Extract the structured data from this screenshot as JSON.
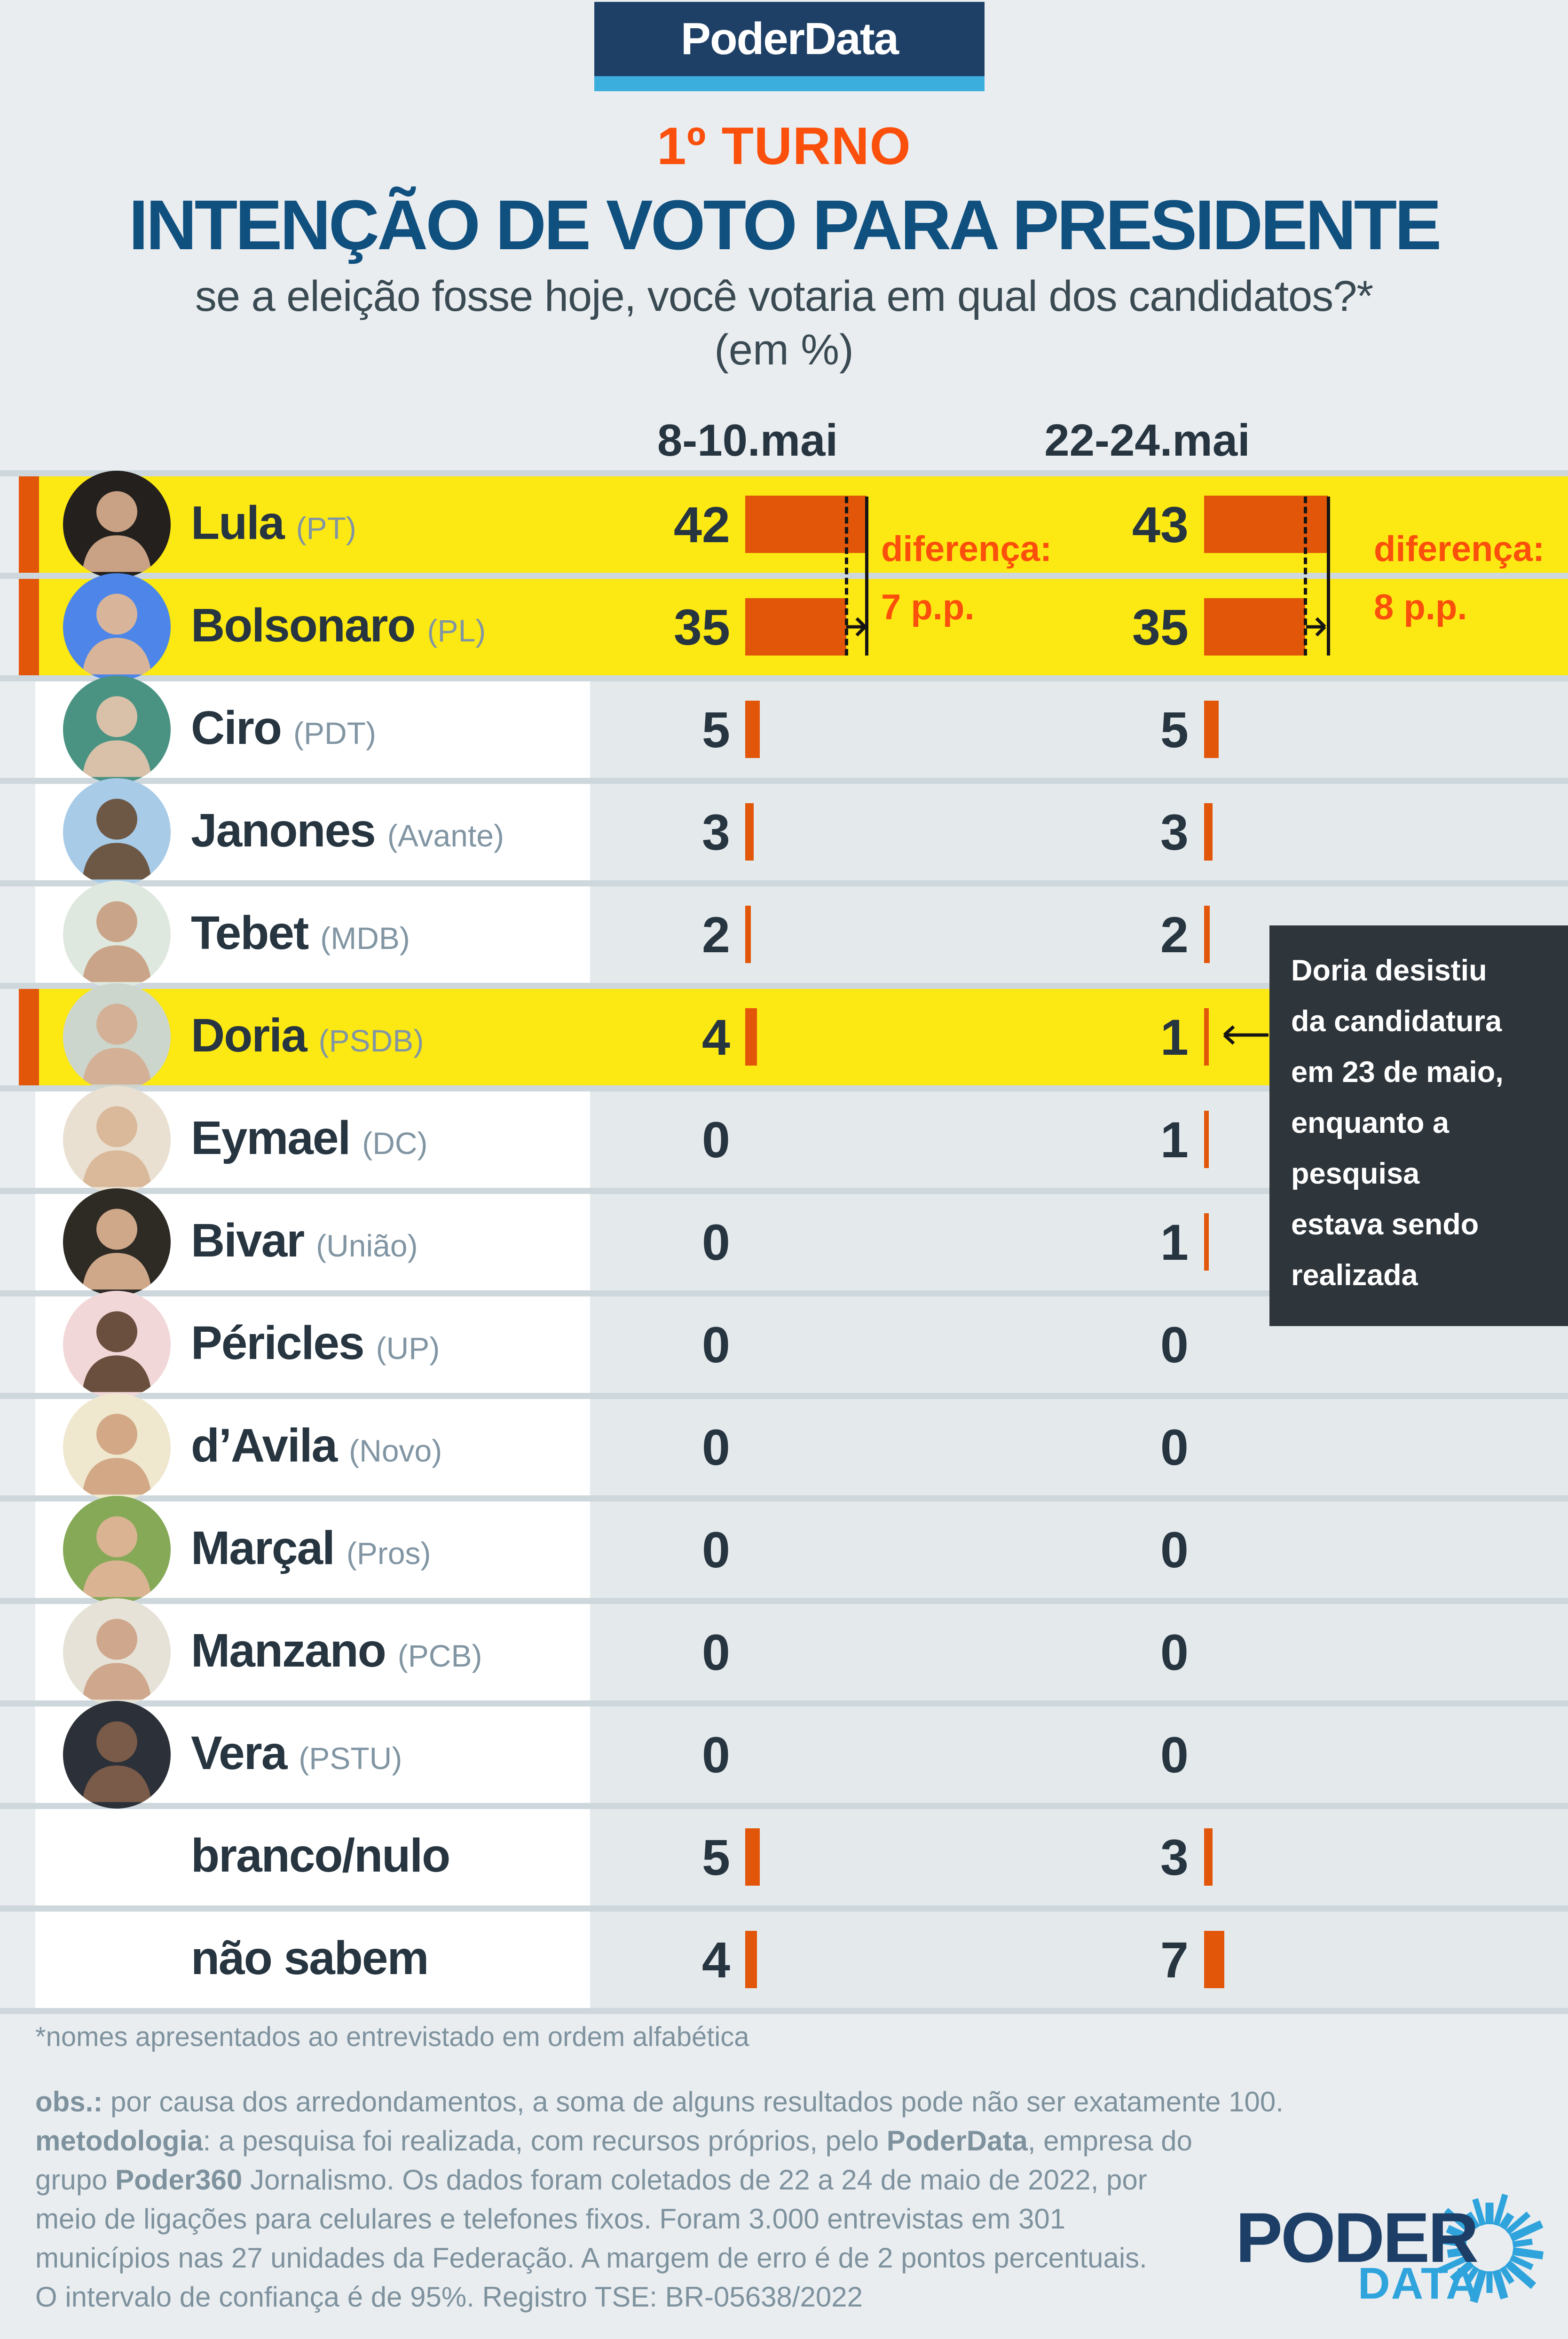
{
  "brand": {
    "badge_label": "PoderData",
    "logo_top": "PODER",
    "logo_bottom": "DATA"
  },
  "header": {
    "round_label": "1º TURNO",
    "title": "INTENÇÃO DE VOTO PARA PRESIDENTE",
    "subtitle": "se a eleição fosse hoje, você votaria em qual dos candidatos?*",
    "unit_label": "(em %)"
  },
  "columns": {
    "col1": "8-10.mai",
    "col2": "22-24.mai"
  },
  "diff": {
    "label": "diferença:",
    "col1_value": "7 p.p.",
    "col2_value": "8 p.p."
  },
  "doria_note": {
    "lines": [
      "Doria desistiu",
      "da candidatura",
      "em 23 de maio,",
      "enquanto a",
      "pesquisa",
      "estava sendo",
      "realizada"
    ]
  },
  "table": {
    "rows": [
      {
        "name": "Lula",
        "party": "(PT)",
        "v1": 42,
        "v2": 43,
        "highlight": true,
        "avatar": {
          "bg": "#23201d",
          "fg": "#c9a184"
        }
      },
      {
        "name": "Bolsonaro",
        "party": "(PL)",
        "v1": 35,
        "v2": 35,
        "highlight": true,
        "avatar": {
          "bg": "#4d86e8",
          "fg": "#d8b59a"
        }
      },
      {
        "name": "Ciro",
        "party": "(PDT)",
        "v1": 5,
        "v2": 5,
        "highlight": false,
        "avatar": {
          "bg": "#4a9383",
          "fg": "#d9c0a8"
        }
      },
      {
        "name": "Janones",
        "party": "(Avante)",
        "v1": 3,
        "v2": 3,
        "highlight": false,
        "avatar": {
          "bg": "#a8cbe8",
          "fg": "#6d5846"
        }
      },
      {
        "name": "Tebet",
        "party": "(MDB)",
        "v1": 2,
        "v2": 2,
        "highlight": false,
        "avatar": {
          "bg": "#dfe8df",
          "fg": "#caa488"
        }
      },
      {
        "name": "Doria",
        "party": "(PSDB)",
        "v1": 4,
        "v2": 1,
        "highlight": true,
        "avatar": {
          "bg": "#cdd6cc",
          "fg": "#d3b096"
        }
      },
      {
        "name": "Eymael",
        "party": "(DC)",
        "v1": 0,
        "v2": 1,
        "highlight": false,
        "avatar": {
          "bg": "#e9e0d2",
          "fg": "#d9b99a"
        }
      },
      {
        "name": "Bivar",
        "party": "(União)",
        "v1": 0,
        "v2": 1,
        "highlight": false,
        "avatar": {
          "bg": "#2e2a24",
          "fg": "#cfa88a"
        }
      },
      {
        "name": "Péricles",
        "party": "(UP)",
        "v1": 0,
        "v2": 0,
        "highlight": false,
        "avatar": {
          "bg": "#f2d7d8",
          "fg": "#6b4f3e"
        }
      },
      {
        "name": "d’Avila",
        "party": "(Novo)",
        "v1": 0,
        "v2": 0,
        "highlight": false,
        "avatar": {
          "bg": "#efe8cf",
          "fg": "#d2a886"
        }
      },
      {
        "name": "Marçal",
        "party": "(Pros)",
        "v1": 0,
        "v2": 0,
        "highlight": false,
        "avatar": {
          "bg": "#86a957",
          "fg": "#d9b392"
        }
      },
      {
        "name": "Manzano",
        "party": "(PCB)",
        "v1": 0,
        "v2": 0,
        "highlight": false,
        "avatar": {
          "bg": "#e6e2d8",
          "fg": "#cfa78d"
        }
      },
      {
        "name": "Vera",
        "party": "(PSTU)",
        "v1": 0,
        "v2": 0,
        "highlight": false,
        "avatar": {
          "bg": "#2c3038",
          "fg": "#7a5a48"
        }
      },
      {
        "name": "branco/nulo",
        "party": "",
        "v1": 5,
        "v2": 3,
        "highlight": false,
        "avatar": null
      },
      {
        "name": "não sabem",
        "party": "",
        "v1": 4,
        "v2": 7,
        "highlight": false,
        "avatar": null
      }
    ]
  },
  "footnote": "*nomes apresentados ao entrevistado em ordem alfabética",
  "notes": {
    "lines": [
      [
        [
          "obs.:",
          1
        ],
        [
          " por causa dos arredondamentos, a soma de alguns resultados pode não ser exatamente 100.",
          0
        ]
      ],
      [
        [
          "metodologia",
          1
        ],
        [
          ": a pesquisa foi realizada, com recursos próprios, pelo ",
          0
        ],
        [
          "PoderData",
          1
        ],
        [
          ", empresa do",
          0
        ]
      ],
      [
        [
          "grupo ",
          0
        ],
        [
          "Poder360",
          1
        ],
        [
          " Jornalismo. Os dados foram coletados de 22 a 24 de maio de 2022, por",
          0
        ]
      ],
      [
        [
          "meio de ligações para celulares e telefones fixos. Foram 3.000 entrevistas em 301",
          0
        ]
      ],
      [
        [
          "municípios nas 27 unidades da Federação. A margem de erro é de 2 pontos percentuais.",
          0
        ]
      ],
      [
        [
          "O intervalo de confiança é de 95%. Registro TSE: BR-05638/2022",
          0
        ]
      ]
    ]
  },
  "colors": {
    "accent_orange": "#fb4f0c",
    "bar_orange": "#e2560a",
    "highlight_yellow": "#fce813",
    "badge_navy": "#1e4066",
    "badge_sky": "#3caede",
    "title_blue": "#10507f",
    "note_box_dark": "#2e353b",
    "logo_navy": "#1d3e66",
    "logo_blue": "#2fa3dc"
  },
  "chart_data": {
    "type": "bar",
    "title": "Intenção de voto para presidente — 1º turno (em %)",
    "subtitle": "se a eleição fosse hoje, você votaria em qual dos candidatos?*",
    "categories": [
      "Lula (PT)",
      "Bolsonaro (PL)",
      "Ciro (PDT)",
      "Janones (Avante)",
      "Tebet (MDB)",
      "Doria (PSDB)",
      "Eymael (DC)",
      "Bivar (União)",
      "Péricles (UP)",
      "d’Avila (Novo)",
      "Marçal (Pros)",
      "Manzano (PCB)",
      "Vera (PSTU)",
      "branco/nulo",
      "não sabem"
    ],
    "series": [
      {
        "name": "8-10.mai",
        "values": [
          42,
          35,
          5,
          3,
          2,
          4,
          0,
          0,
          0,
          0,
          0,
          0,
          0,
          5,
          4
        ]
      },
      {
        "name": "22-24.mai",
        "values": [
          43,
          35,
          5,
          3,
          2,
          1,
          1,
          1,
          0,
          0,
          0,
          0,
          0,
          3,
          7
        ]
      }
    ],
    "ylim": [
      0,
      50
    ],
    "grid": false,
    "legend_position": "column headers",
    "highlighted_categories": [
      "Lula (PT)",
      "Bolsonaro (PL)",
      "Doria (PSDB)"
    ],
    "annotations": [
      {
        "text": "diferença: 7 p.p.",
        "applies_to": "8-10.mai, Lula vs Bolsonaro"
      },
      {
        "text": "diferença: 8 p.p.",
        "applies_to": "22-24.mai, Lula vs Bolsonaro"
      },
      {
        "text": "Doria desistiu da candidatura em 23 de maio, enquanto a pesquisa estava sendo realizada",
        "applies_to": "Doria, 22-24.mai"
      }
    ]
  }
}
